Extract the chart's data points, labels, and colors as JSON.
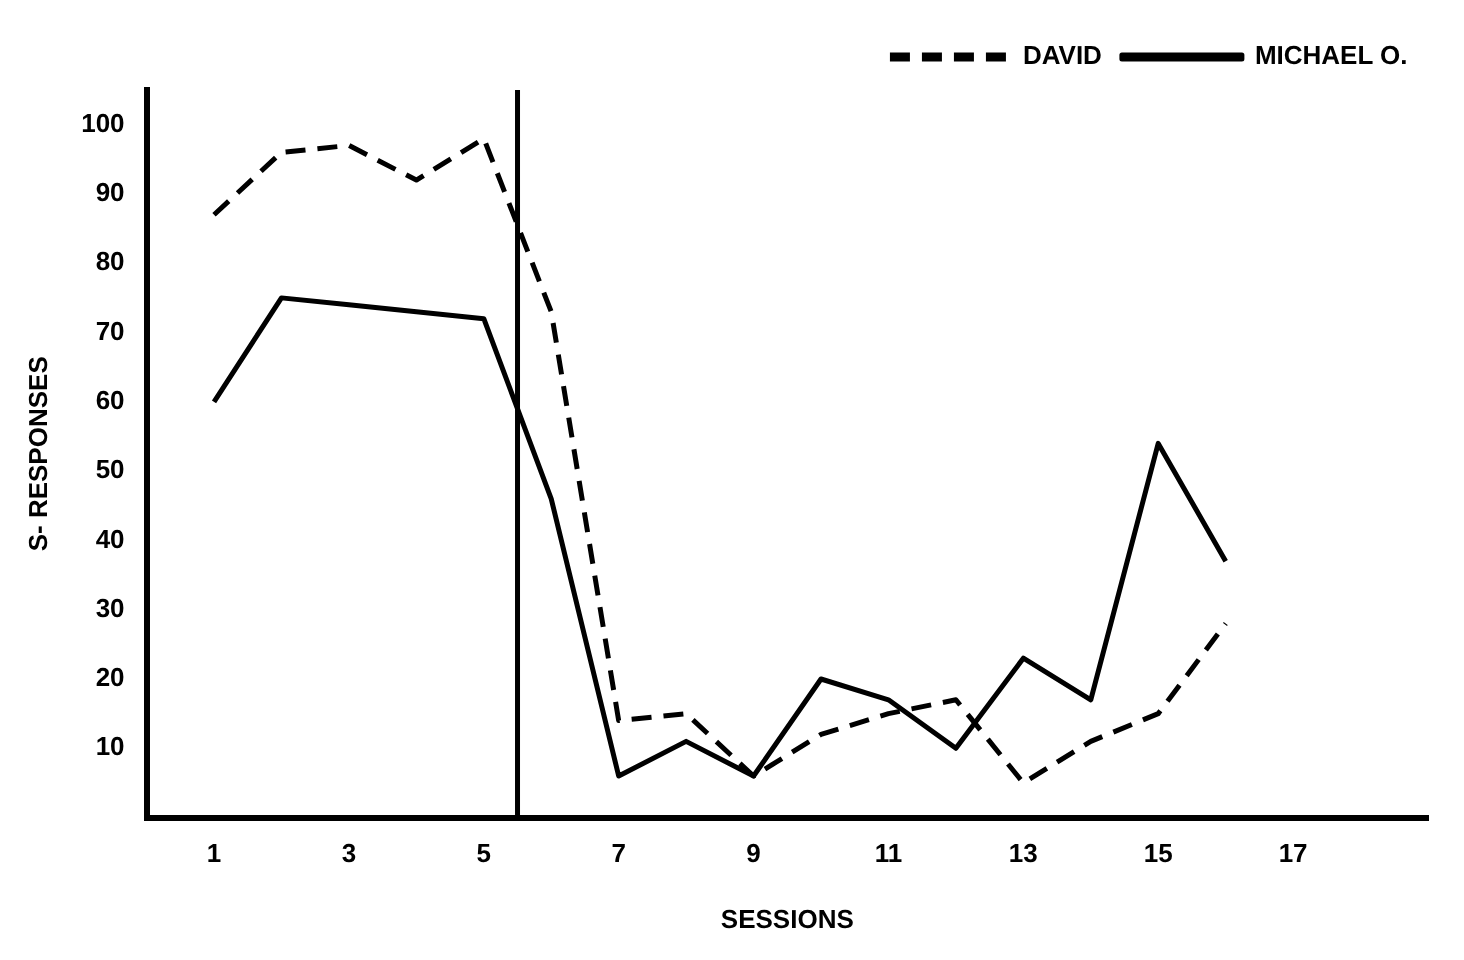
{
  "chart_data": {
    "type": "line",
    "xlabel": "SESSIONS",
    "ylabel": "S- RESPONSES",
    "x": [
      1,
      2,
      3,
      4,
      5,
      6,
      7,
      8,
      9,
      10,
      11,
      12,
      13,
      14,
      15,
      16
    ],
    "series": [
      {
        "name": "DAVID",
        "color": "#000000",
        "line_style": "dashed",
        "values": [
          87,
          96,
          97,
          92,
          98,
          73,
          14,
          15,
          6,
          12,
          15,
          17,
          5,
          11,
          15,
          28
        ]
      },
      {
        "name": "MICHAEL O.",
        "color": "#000000",
        "line_style": "solid",
        "values": [
          60,
          75,
          74,
          73,
          72,
          46,
          6,
          11,
          6,
          20,
          17,
          10,
          23,
          17,
          54,
          37
        ]
      }
    ],
    "xlim": [
      0,
      19
    ],
    "xticks": [
      1,
      3,
      5,
      7,
      9,
      11,
      13,
      15,
      17
    ],
    "ylim": [
      0,
      105
    ],
    "yticks": [
      10,
      20,
      30,
      40,
      50,
      60,
      70,
      80,
      90,
      100
    ],
    "ref_lines": [
      {
        "axis": "x",
        "value": 5.5,
        "color": "#000000"
      }
    ],
    "grid": false,
    "legend": "top right",
    "marker": "none"
  }
}
